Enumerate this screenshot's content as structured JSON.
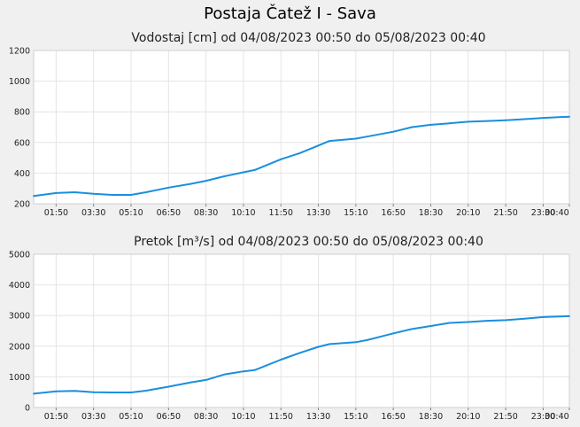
{
  "title": "Postaja Čatež I - Sava",
  "chart_data": [
    {
      "type": "line",
      "title": "Vodostaj [cm] od 04/08/2023 00:50 do 05/08/2023 00:40",
      "xlabel": "",
      "ylabel": "",
      "ylim": [
        200,
        1200
      ],
      "y_ticks": [
        "200",
        "400",
        "600",
        "800",
        "1000",
        "1200"
      ],
      "x_ticks": [
        "01:50",
        "03:30",
        "05:10",
        "06:50",
        "08:30",
        "10:10",
        "11:50",
        "13:30",
        "15:10",
        "16:50",
        "18:30",
        "20:10",
        "21:50",
        "23:30",
        "00:40"
      ],
      "grid": true,
      "line_color": "#1a8fdc",
      "series": [
        {
          "x": [
            "00:50",
            "01:50",
            "02:40",
            "03:30",
            "04:20",
            "05:10",
            "05:50",
            "06:50",
            "07:50",
            "08:30",
            "09:20",
            "10:10",
            "10:40",
            "11:50",
            "12:40",
            "13:30",
            "14:00",
            "15:10",
            "15:40",
            "16:50",
            "17:40",
            "18:30",
            "19:20",
            "20:10",
            "21:00",
            "21:50",
            "22:40",
            "23:30",
            "00:40"
          ],
          "values": [
            250,
            270,
            275,
            265,
            258,
            258,
            275,
            305,
            330,
            350,
            380,
            405,
            420,
            490,
            530,
            580,
            610,
            625,
            638,
            670,
            700,
            715,
            725,
            735,
            740,
            745,
            752,
            760,
            768
          ]
        }
      ]
    },
    {
      "type": "line",
      "title": "Pretok [m³/s] od 04/08/2023 00:50 do 05/08/2023 00:40",
      "xlabel": "",
      "ylabel": "",
      "ylim": [
        0,
        5000
      ],
      "y_ticks": [
        "0",
        "1000",
        "2000",
        "3000",
        "4000",
        "5000"
      ],
      "x_ticks": [
        "01:50",
        "03:30",
        "05:10",
        "06:50",
        "08:30",
        "10:10",
        "11:50",
        "13:30",
        "15:10",
        "16:50",
        "18:30",
        "20:10",
        "21:50",
        "23:30",
        "00:40"
      ],
      "grid": true,
      "line_color": "#1a8fdc",
      "series": [
        {
          "x": [
            "00:50",
            "01:50",
            "02:40",
            "03:30",
            "04:20",
            "05:10",
            "05:50",
            "06:50",
            "07:50",
            "08:30",
            "09:20",
            "10:10",
            "10:40",
            "11:50",
            "12:40",
            "13:30",
            "14:00",
            "15:10",
            "15:40",
            "16:50",
            "17:40",
            "18:30",
            "19:20",
            "20:10",
            "21:00",
            "21:50",
            "22:40",
            "23:30",
            "00:40"
          ],
          "values": [
            450,
            530,
            540,
            500,
            490,
            490,
            550,
            680,
            820,
            900,
            1080,
            1180,
            1220,
            1560,
            1780,
            1980,
            2070,
            2130,
            2200,
            2420,
            2560,
            2660,
            2760,
            2790,
            2830,
            2850,
            2900,
            2950,
            2980
          ]
        }
      ]
    }
  ]
}
